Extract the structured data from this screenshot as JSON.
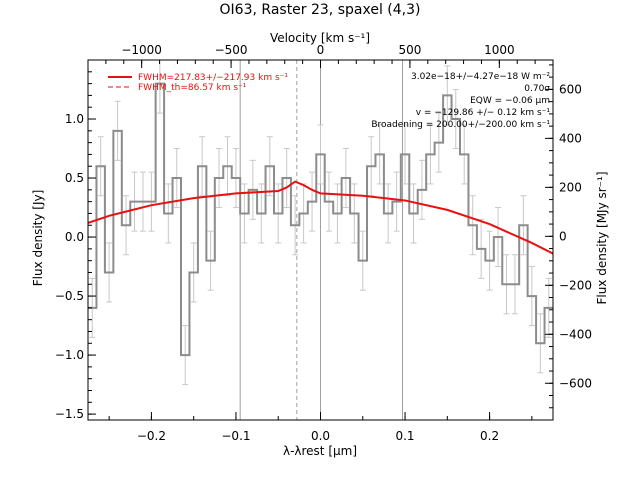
{
  "chart_data": {
    "type": "line",
    "title": "OI63, Raster 23, spaxel (4,3)",
    "xlabel": "λ-λrest [μm]",
    "ylabel": "Flux density [Jy]",
    "x2label": "Velocity [km s⁻¹]",
    "y2label": "Flux density [MJy sr⁻¹]",
    "xlim": [
      -0.275,
      0.275
    ],
    "ylim": [
      -1.55,
      1.5
    ],
    "x2lim": [
      -1300,
      1300
    ],
    "y2lim": [
      -750,
      720
    ],
    "x_ticks": [
      -0.2,
      -0.1,
      0.0,
      0.1,
      0.2
    ],
    "x_tick_labels": [
      "−0.2",
      "−0.1",
      "0.0",
      "0.1",
      "0.2"
    ],
    "y_ticks": [
      -1.5,
      -1.0,
      -0.5,
      0.0,
      0.5,
      1.0
    ],
    "y_tick_labels": [
      "−1.5",
      "−1.0",
      "−0.5",
      "0.0",
      "0.5",
      "1.0"
    ],
    "x2_ticks": [
      -1000,
      -500,
      0,
      500,
      1000
    ],
    "x2_tick_labels": [
      "−1000",
      "−500",
      "0",
      "500",
      "1000"
    ],
    "y2_ticks": [
      -600,
      -400,
      -200,
      0,
      200,
      400,
      600
    ],
    "y2_tick_labels": [
      "−600",
      "−400",
      "−200",
      "0",
      "200",
      "400",
      "600"
    ],
    "vertical_lines": [
      {
        "x": -0.095,
        "style": "solid",
        "color": "#a0a0a0"
      },
      {
        "x": 0.0,
        "style": "solid",
        "color": "#a0a0a0"
      },
      {
        "x": 0.097,
        "style": "solid",
        "color": "#a0a0a0"
      },
      {
        "x": -0.028,
        "style": "dashed",
        "color": "#a0a0a0"
      }
    ],
    "series": [
      {
        "style": "step-with-errorbars",
        "color": "#8c8c8c",
        "x": [
          -0.27,
          -0.26,
          -0.25,
          -0.24,
          -0.23,
          -0.22,
          -0.21,
          -0.2,
          -0.19,
          -0.18,
          -0.17,
          -0.16,
          -0.15,
          -0.14,
          -0.13,
          -0.12,
          -0.11,
          -0.1,
          -0.09,
          -0.08,
          -0.07,
          -0.06,
          -0.05,
          -0.04,
          -0.03,
          -0.02,
          -0.01,
          0.0,
          0.01,
          0.02,
          0.03,
          0.04,
          0.05,
          0.06,
          0.07,
          0.08,
          0.09,
          0.1,
          0.11,
          0.12,
          0.13,
          0.14,
          0.15,
          0.16,
          0.17,
          0.18,
          0.19,
          0.2,
          0.21,
          0.22,
          0.23,
          0.24,
          0.25,
          0.26,
          0.27
        ],
        "y": [
          -0.6,
          0.6,
          -0.3,
          0.9,
          0.1,
          0.3,
          0.3,
          0.3,
          1.3,
          0.2,
          0.5,
          -1.0,
          -0.3,
          0.6,
          -0.2,
          0.5,
          0.6,
          0.5,
          0.2,
          0.4,
          0.2,
          0.6,
          0.2,
          0.5,
          0.1,
          0.2,
          0.3,
          0.7,
          0.3,
          0.2,
          0.5,
          0.2,
          -0.2,
          0.6,
          0.7,
          0.2,
          0.3,
          0.7,
          0.2,
          0.4,
          0.7,
          0.8,
          1.2,
          1.0,
          0.7,
          0.1,
          -0.1,
          -0.2,
          0.0,
          -0.4,
          -0.4,
          0.1,
          -0.5,
          -0.9,
          -0.6
        ],
        "errors": [
          0.25,
          0.25,
          0.25,
          0.25,
          0.25,
          0.25,
          0.25,
          0.25,
          0.25,
          0.25,
          0.25,
          0.25,
          0.25,
          0.25,
          0.25,
          0.25,
          0.25,
          0.25,
          0.25,
          0.25,
          0.25,
          0.25,
          0.25,
          0.25,
          0.25,
          0.25,
          0.25,
          0.25,
          0.25,
          0.25,
          0.25,
          0.25,
          0.25,
          0.25,
          0.25,
          0.25,
          0.25,
          0.25,
          0.25,
          0.25,
          0.25,
          0.25,
          0.25,
          0.25,
          0.25,
          0.25,
          0.25,
          0.25,
          0.25,
          0.25,
          0.25,
          0.25,
          0.25,
          0.25,
          0.25
        ]
      },
      {
        "style": "fit-line",
        "color": "#e81010",
        "x": [
          -0.275,
          -0.25,
          -0.2,
          -0.15,
          -0.1,
          -0.05,
          -0.04,
          -0.03,
          -0.02,
          -0.01,
          0.0,
          0.05,
          0.1,
          0.15,
          0.2,
          0.25,
          0.275
        ],
        "y": [
          0.12,
          0.18,
          0.27,
          0.33,
          0.37,
          0.39,
          0.42,
          0.47,
          0.44,
          0.4,
          0.37,
          0.35,
          0.31,
          0.23,
          0.11,
          -0.05,
          -0.14
        ]
      }
    ],
    "legend": [
      {
        "label": "FWHM=217.83+/−217.93 km s⁻¹",
        "style": "solid",
        "color": "#e81010"
      },
      {
        "label": "FWHM_th=86.57 km s⁻¹",
        "style": "dashed",
        "color": "#e81010"
      }
    ],
    "annotations": [
      "3.02e−18+/−4.27e−18 W m⁻²",
      "0.70σ",
      "EQW = −0.06 μm",
      "v = −129.86 +/− 0.12 km s⁻¹",
      "Broadening = 200.00+/−200.00 km s⁻¹"
    ]
  }
}
